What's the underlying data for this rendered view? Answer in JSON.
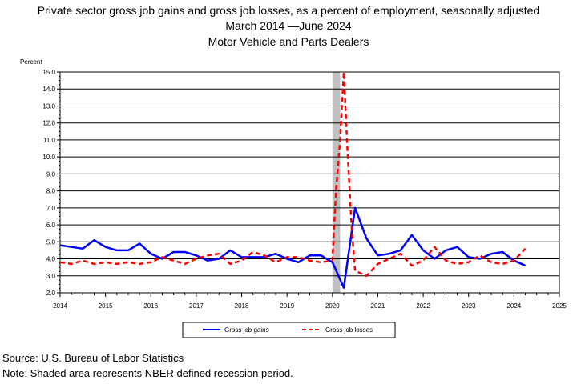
{
  "header": {
    "line1": "Private sector gross job gains and gross job losses, as a percent of employment, seasonally adjusted",
    "line2": "March 2014 —June 2024",
    "line3": "Motor Vehicle and Parts Dealers"
  },
  "footer": {
    "source": "Source: U.S. Bureau of Labor Statistics",
    "note": "Note: Shaded area represents NBER defined recession period."
  },
  "chart_data": {
    "type": "line",
    "ylabel": "Percent",
    "ylim": [
      2.0,
      15.0
    ],
    "yticks": [
      "2.0",
      "3.0",
      "4.0",
      "5.0",
      "6.0",
      "7.0",
      "8.0",
      "9.0",
      "10.0",
      "11.0",
      "12.0",
      "13.0",
      "14.0",
      "15.0"
    ],
    "xlim": [
      2014,
      2025
    ],
    "xticks": [
      "2014",
      "2015",
      "2016",
      "2017",
      "2018",
      "2019",
      "2020",
      "2021",
      "2022",
      "2023",
      "2024",
      "2025"
    ],
    "recession": [
      2020.0,
      2020.17
    ],
    "grid": "horizontal",
    "legend_position": "bottom",
    "series": [
      {
        "name": "Gross job gains",
        "color": "#0000ff",
        "style": "solid",
        "x": [
          2014.0,
          2014.25,
          2014.5,
          2014.75,
          2015.0,
          2015.25,
          2015.5,
          2015.75,
          2016.0,
          2016.25,
          2016.5,
          2016.75,
          2017.0,
          2017.25,
          2017.5,
          2017.75,
          2018.0,
          2018.25,
          2018.5,
          2018.75,
          2019.0,
          2019.25,
          2019.5,
          2019.75,
          2020.0,
          2020.25,
          2020.5,
          2020.75,
          2021.0,
          2021.25,
          2021.5,
          2021.75,
          2022.0,
          2022.25,
          2022.5,
          2022.75,
          2023.0,
          2023.25,
          2023.5,
          2023.75,
          2024.0,
          2024.25
        ],
        "values": [
          4.8,
          4.7,
          4.6,
          5.1,
          4.7,
          4.5,
          4.5,
          4.9,
          4.3,
          4.0,
          4.4,
          4.4,
          4.2,
          3.9,
          4.0,
          4.5,
          4.1,
          4.1,
          4.1,
          4.3,
          4.0,
          3.8,
          4.2,
          4.2,
          3.8,
          2.3,
          7.0,
          5.2,
          4.2,
          4.3,
          4.5,
          5.4,
          4.5,
          4.0,
          4.5,
          4.7,
          4.1,
          4.0,
          4.3,
          4.4,
          3.9,
          3.6
        ]
      },
      {
        "name": "Gross job losses",
        "color": "#ff0000",
        "style": "dashed",
        "x": [
          2014.0,
          2014.25,
          2014.5,
          2014.75,
          2015.0,
          2015.25,
          2015.5,
          2015.75,
          2016.0,
          2016.25,
          2016.5,
          2016.75,
          2017.0,
          2017.25,
          2017.5,
          2017.75,
          2018.0,
          2018.25,
          2018.5,
          2018.75,
          2019.0,
          2019.25,
          2019.5,
          2019.75,
          2020.0,
          2020.08,
          2020.17,
          2020.25,
          2020.33,
          2020.42,
          2020.5,
          2020.75,
          2021.0,
          2021.25,
          2021.5,
          2021.75,
          2022.0,
          2022.25,
          2022.5,
          2022.75,
          2023.0,
          2023.25,
          2023.5,
          2023.75,
          2024.0,
          2024.25
        ],
        "values": [
          3.8,
          3.7,
          3.9,
          3.7,
          3.8,
          3.7,
          3.8,
          3.7,
          3.8,
          4.1,
          3.9,
          3.7,
          4.0,
          4.2,
          4.3,
          3.7,
          3.9,
          4.4,
          4.2,
          3.8,
          4.1,
          4.1,
          3.9,
          3.8,
          3.9,
          8.0,
          11.0,
          15.0,
          10.5,
          6.0,
          3.3,
          3.0,
          3.7,
          4.0,
          4.3,
          3.6,
          3.9,
          4.7,
          3.9,
          3.7,
          3.8,
          4.2,
          3.8,
          3.7,
          3.9,
          4.6
        ]
      }
    ]
  }
}
